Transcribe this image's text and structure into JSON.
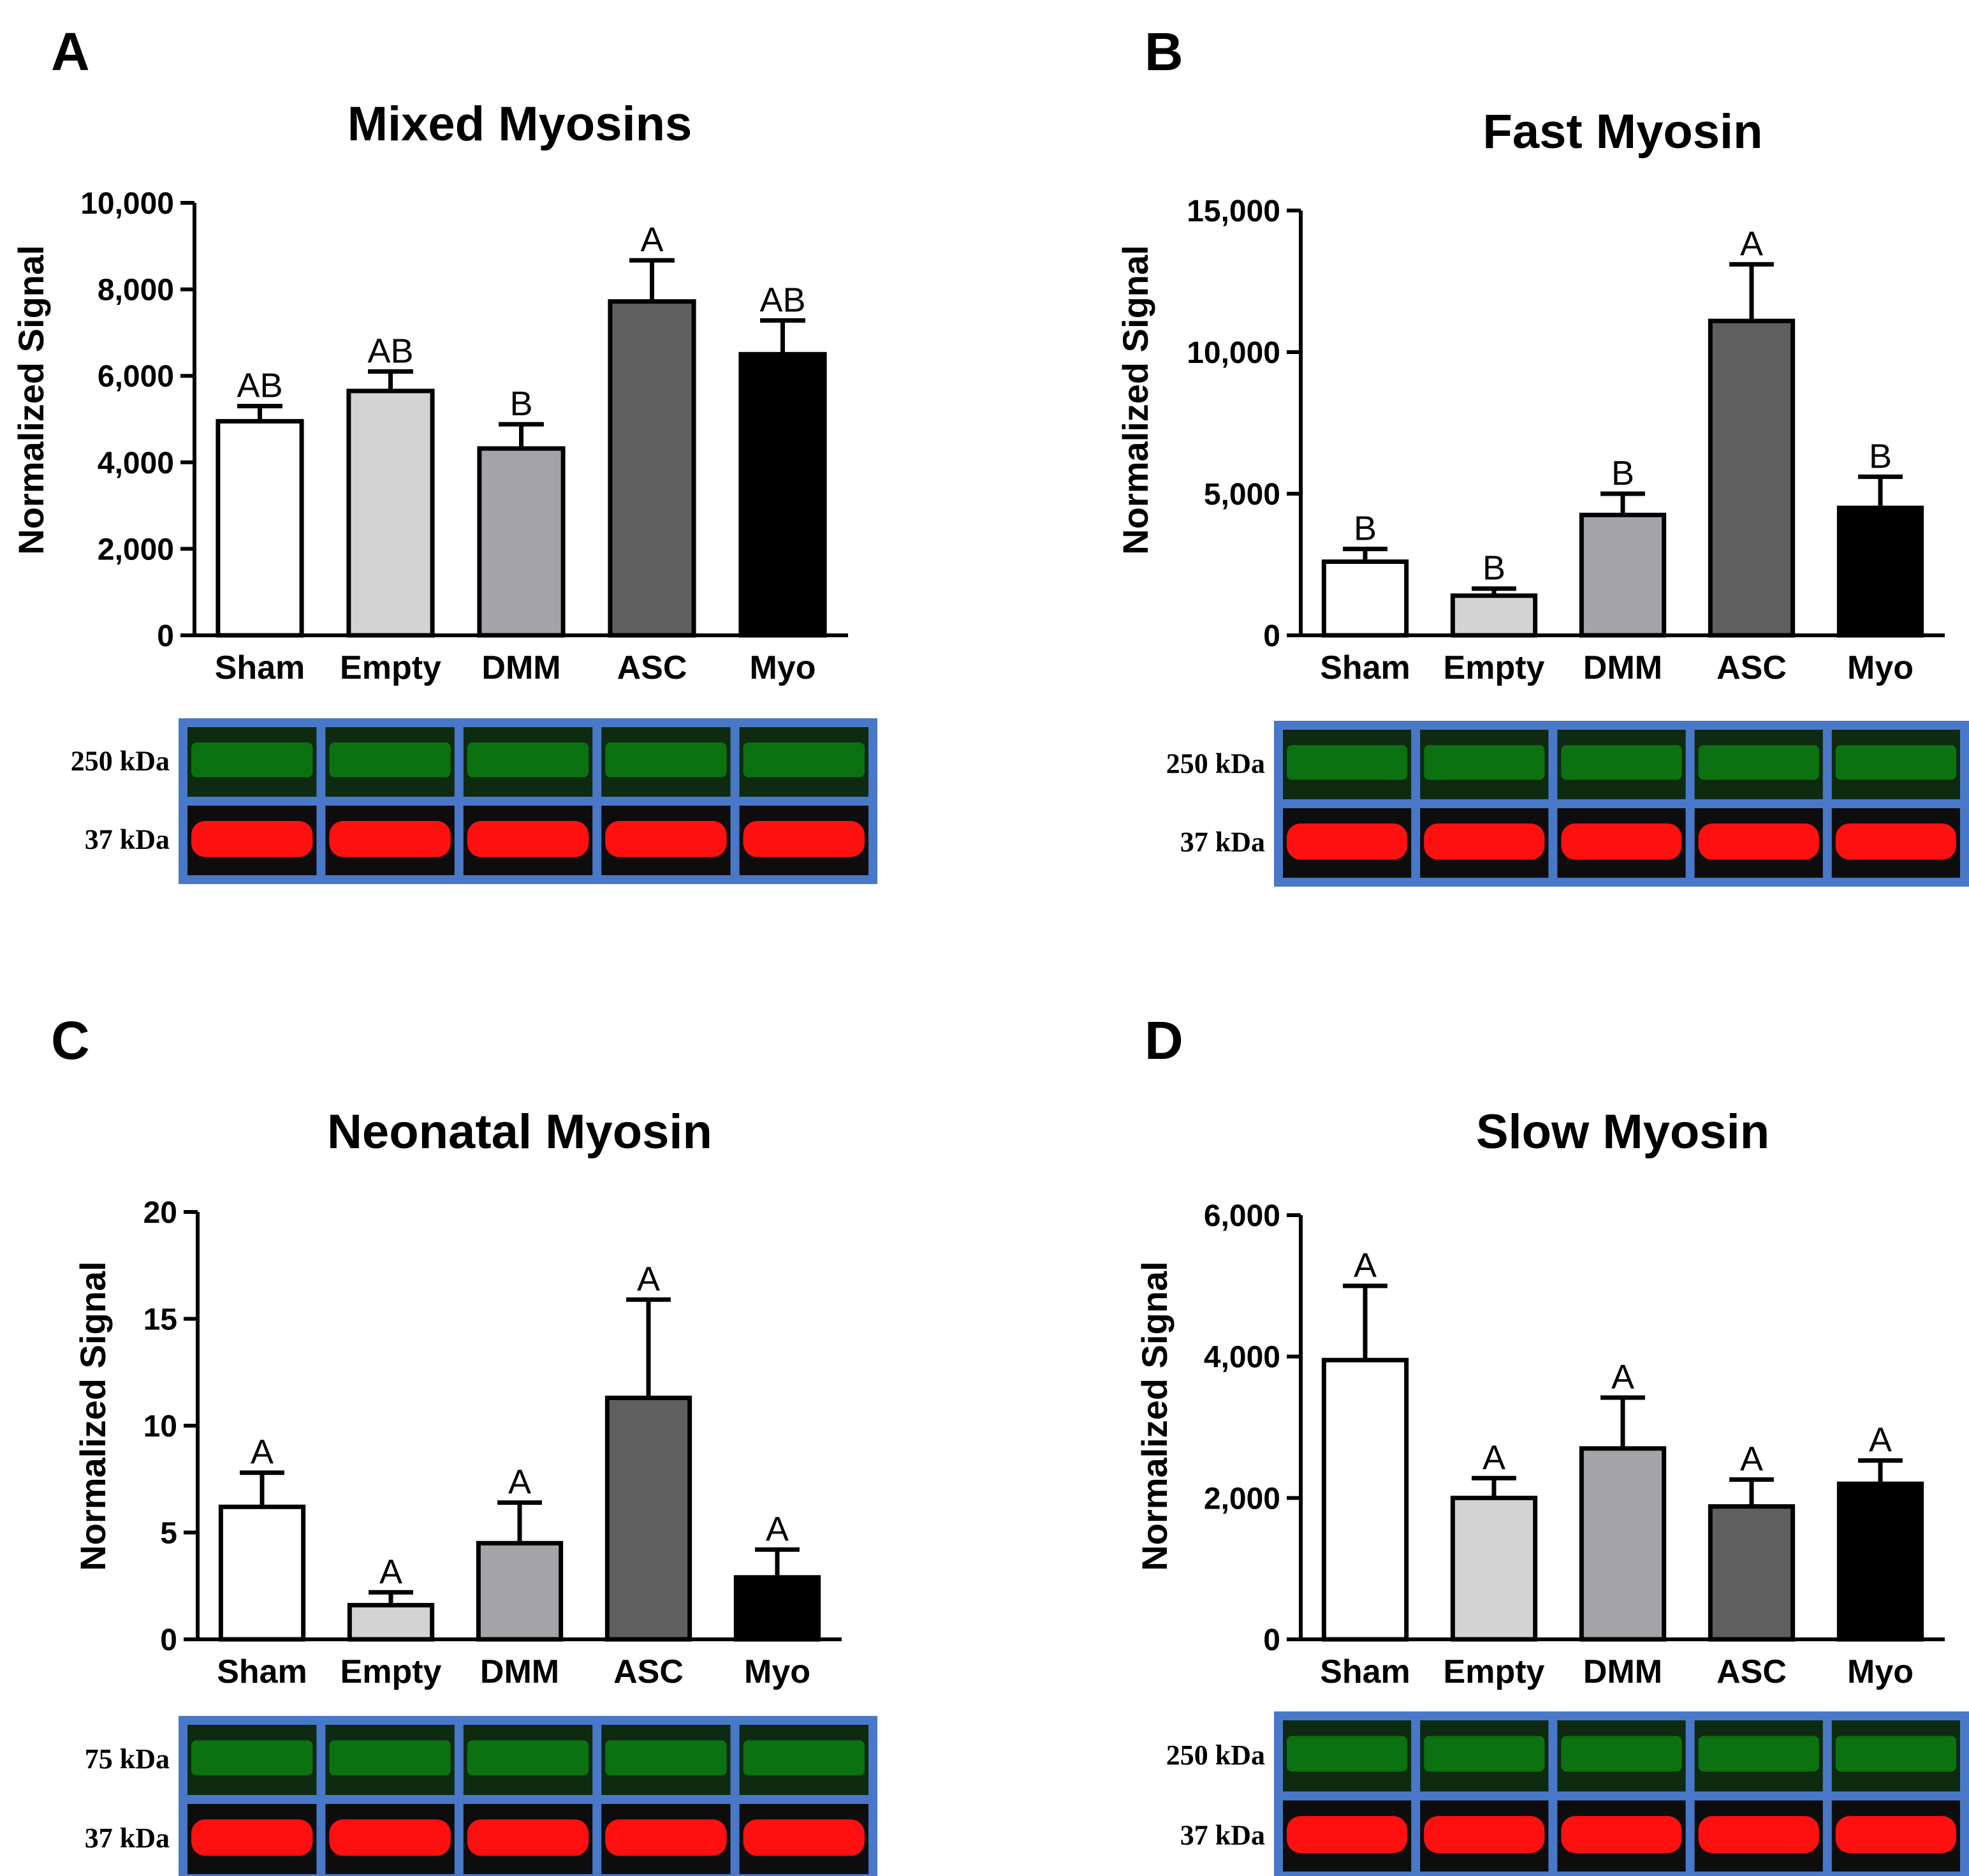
{
  "chart_data": [
    {
      "panel": "A",
      "type": "bar",
      "title": "Mixed Myosins",
      "ylabel": "Normalized Signal",
      "xlabel": "",
      "categories": [
        "Sham",
        "Empty",
        "DMM",
        "ASC",
        "Myo"
      ],
      "values": [
        4950,
        5650,
        4320,
        7720,
        6500
      ],
      "errors": [
        350,
        450,
        560,
        950,
        780
      ],
      "significance": [
        "AB",
        "AB",
        "B",
        "A",
        "AB"
      ],
      "bar_colors": [
        "#ffffff",
        "#d3d3d3",
        "#a3a3a8",
        "#5f5f5f",
        "#000000"
      ],
      "ylim": [
        0,
        10000
      ],
      "yticks": [
        0,
        2000,
        4000,
        6000,
        8000,
        10000
      ],
      "ytick_labels": [
        "0",
        "2,000",
        "4,000",
        "6,000",
        "8,000",
        "10,000"
      ],
      "blot_labels": [
        "250 kDa",
        "37 kDa"
      ]
    },
    {
      "panel": "B",
      "type": "bar",
      "title": "Fast Myosin",
      "ylabel": "Normalized Signal",
      "xlabel": "",
      "categories": [
        "Sham",
        "Empty",
        "DMM",
        "ASC",
        "Myo"
      ],
      "values": [
        2600,
        1400,
        4250,
        11100,
        4500
      ],
      "errors": [
        450,
        250,
        750,
        2000,
        1100
      ],
      "significance": [
        "B",
        "B",
        "B",
        "A",
        "B"
      ],
      "bar_colors": [
        "#ffffff",
        "#d3d3d3",
        "#a3a3a8",
        "#5f5f5f",
        "#000000"
      ],
      "ylim": [
        0,
        15000
      ],
      "yticks": [
        0,
        5000,
        10000,
        15000
      ],
      "ytick_labels": [
        "0",
        "5,000",
        "10,000",
        "15,000"
      ],
      "blot_labels": [
        "250 kDa",
        "37 kDa"
      ]
    },
    {
      "panel": "C",
      "type": "bar",
      "title": "Neonatal Myosin",
      "ylabel": "Normalized Signal",
      "xlabel": "",
      "categories": [
        "Sham",
        "Empty",
        "DMM",
        "ASC",
        "Myo"
      ],
      "values": [
        6.2,
        1.6,
        4.5,
        11.3,
        2.9
      ],
      "errors": [
        1.6,
        0.6,
        1.9,
        4.6,
        1.3
      ],
      "significance": [
        "A",
        "A",
        "A",
        "A",
        "A"
      ],
      "bar_colors": [
        "#ffffff",
        "#d3d3d3",
        "#a3a3a8",
        "#5f5f5f",
        "#000000"
      ],
      "ylim": [
        0,
        20
      ],
      "yticks": [
        0,
        5,
        10,
        15,
        20
      ],
      "ytick_labels": [
        "0",
        "5",
        "10",
        "15",
        "20"
      ],
      "blot_labels": [
        "75 kDa",
        "37 kDa"
      ]
    },
    {
      "panel": "D",
      "type": "bar",
      "title": "Slow Myosin",
      "ylabel": "Normalized Signal",
      "xlabel": "",
      "categories": [
        "Sham",
        "Empty",
        "DMM",
        "ASC",
        "Myo"
      ],
      "values": [
        3950,
        2000,
        2700,
        1880,
        2200
      ],
      "errors": [
        1050,
        280,
        720,
        380,
        330
      ],
      "significance": [
        "A",
        "A",
        "A",
        "A",
        "A"
      ],
      "bar_colors": [
        "#ffffff",
        "#d3d3d3",
        "#a3a3a8",
        "#5f5f5f",
        "#000000"
      ],
      "ylim": [
        0,
        6000
      ],
      "yticks": [
        0,
        2000,
        4000,
        6000
      ],
      "ytick_labels": [
        "0",
        "2,000",
        "4,000",
        "6,000"
      ],
      "blot_labels": [
        "250 kDa",
        "37 kDa"
      ]
    }
  ],
  "colors": {
    "blot_frame": "#4a78c8",
    "blot_green": "#0c8a12",
    "blot_red": "#ff1010",
    "blot_background": "#0d0d0d"
  }
}
